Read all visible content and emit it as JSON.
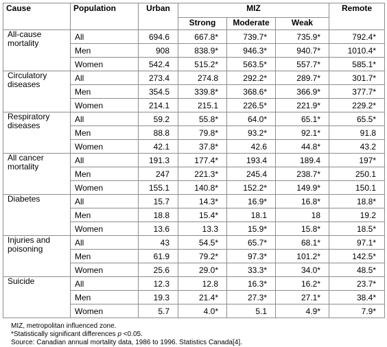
{
  "header": {
    "cause": "Cause",
    "population": "Population",
    "urban": "Urban",
    "miz": "MIZ",
    "strong": "Strong",
    "moderate": "Moderate",
    "weak": "Weak",
    "remote": "Remote"
  },
  "groups": [
    {
      "cause": "All-cause mortality",
      "rows": [
        [
          "All",
          "694.6",
          "667.8*",
          "739.7*",
          "735.9*",
          "792.4*"
        ],
        [
          "Men",
          "908",
          "838.9*",
          "946.3*",
          "940.7*",
          "1010.4*"
        ],
        [
          "Women",
          "542.4",
          "515.2*",
          "563.5*",
          "557.7*",
          "585.1*"
        ]
      ]
    },
    {
      "cause": "Circulatory diseases",
      "rows": [
        [
          "All",
          "273.4",
          "274.8",
          "292.2*",
          "289.7*",
          "301.7*"
        ],
        [
          "Men",
          "354.5",
          "339.8*",
          "368.6*",
          "366.9*",
          "377.7*"
        ],
        [
          "Women",
          "214.1",
          "215.1",
          "226.5*",
          "221.9*",
          "229.2*"
        ]
      ]
    },
    {
      "cause": "Respiratory diseases",
      "rows": [
        [
          "All",
          "59.2",
          "55.8*",
          "64.0*",
          "65.1*",
          "65.5*"
        ],
        [
          "Men",
          "88.8",
          "79.8*",
          "93.2*",
          "92.1*",
          "91.8"
        ],
        [
          "Women",
          "42.1",
          "37.8*",
          "42.6",
          "44.8*",
          "43.2"
        ]
      ]
    },
    {
      "cause": "All cancer mortality",
      "rows": [
        [
          "All",
          "191.3",
          "177.4*",
          "193.4",
          "189.4",
          "197*"
        ],
        [
          "Men",
          "247",
          "221.3*",
          "245.4",
          "238.7*",
          "250.1"
        ],
        [
          "Women",
          "155.1",
          "140.8*",
          "152.2*",
          "149.9*",
          "150.1"
        ]
      ]
    },
    {
      "cause": "Diabetes",
      "rows": [
        [
          "All",
          "15.7",
          "14.3*",
          "16.9*",
          "16.8*",
          "18.8*"
        ],
        [
          "Men",
          "18.8",
          "15.4*",
          "18.1",
          "18",
          "19.2"
        ],
        [
          "Women",
          "13.6",
          "13.3",
          "15.9*",
          "15.8*",
          "18.5*"
        ]
      ]
    },
    {
      "cause": "Injuries and poisoning",
      "rows": [
        [
          "All",
          "43",
          "54.5*",
          "65.7*",
          "68.1*",
          "97.1*"
        ],
        [
          "Men",
          "61.9",
          "79.2*",
          "97.3*",
          "101.2*",
          "142.5*"
        ],
        [
          "Women",
          "25.6",
          "29.0*",
          "33.3*",
          "34.0*",
          "48.5*"
        ]
      ]
    },
    {
      "cause": "Suicide",
      "rows": [
        [
          "All",
          "12.3",
          "12.8",
          "16.3*",
          "16.2*",
          "23.7*"
        ],
        [
          "Men",
          "19.3",
          "21.4*",
          "27.3*",
          "27.1*",
          "38.4*"
        ],
        [
          "Women",
          "5.7",
          "4.0*",
          "5.1",
          "4.9*",
          "7.9*"
        ]
      ]
    }
  ],
  "notes": {
    "miz": "MIZ, metropolitan influenced zone.",
    "significance_prefix": "*Statistically significant differences ",
    "significance_p": "p",
    "significance_suffix": " <0.05.",
    "source_label": "Source",
    "source_text": ": Canadian annual mortality data, 1986 to 1996. Statistics Canada[4]."
  }
}
